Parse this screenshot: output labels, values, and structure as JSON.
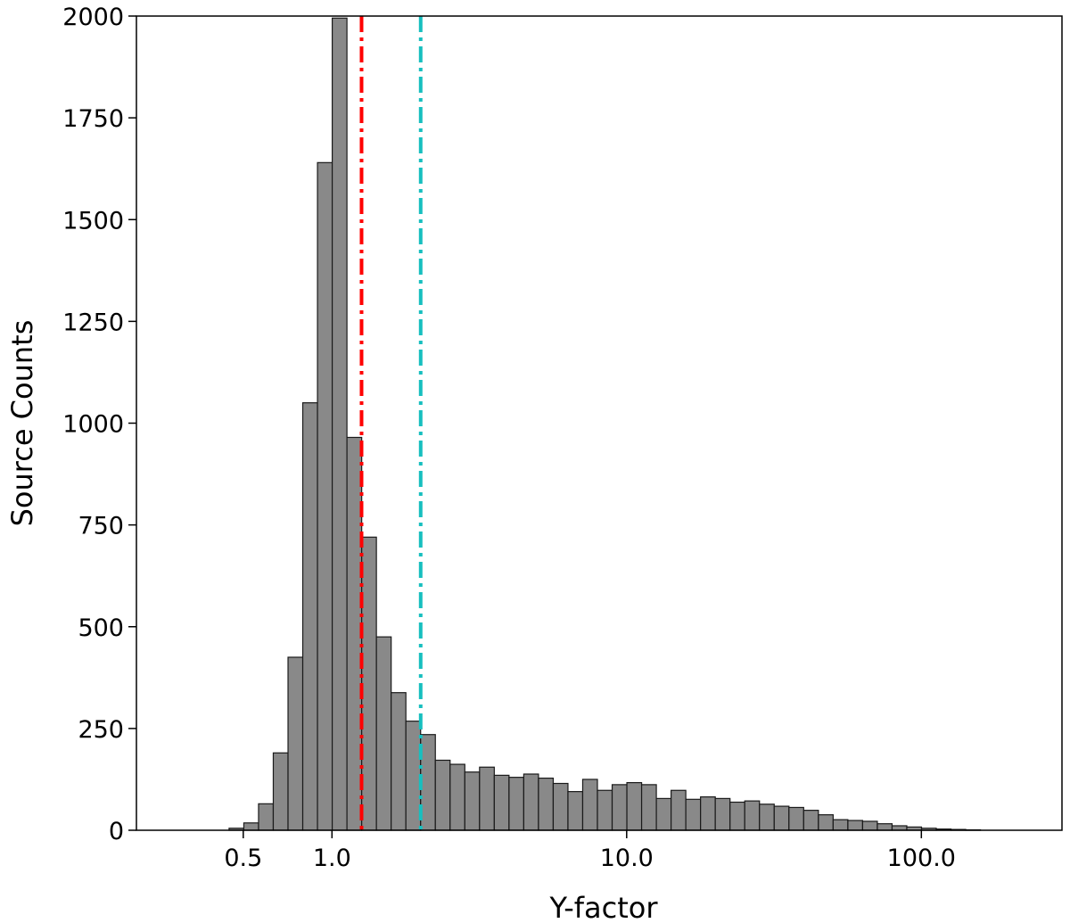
{
  "chart_data": {
    "type": "bar",
    "title": "",
    "xlabel": "Y-factor",
    "ylabel": "Source Counts",
    "xscale": "log",
    "xlim": [
      0.217,
      300
    ],
    "ylim": [
      0,
      2000
    ],
    "xticks": [
      0.5,
      1.0,
      10.0,
      100.0
    ],
    "xtick_labels": [
      "0.5",
      "1.0",
      "10.0",
      "100.0"
    ],
    "yticks": [
      0,
      250,
      500,
      750,
      1000,
      1250,
      1500,
      1750,
      2000
    ],
    "ytick_labels": [
      "0",
      "250",
      "500",
      "750",
      "1000",
      "1250",
      "1500",
      "1750",
      "2000"
    ],
    "grid": false,
    "bar_color": "#898989",
    "bar_edge_color": "#1a1a1a",
    "bin_edges": [
      0.317,
      0.3556,
      0.399,
      0.4476,
      0.5022,
      0.5635,
      0.6322,
      0.7094,
      0.7959,
      0.893,
      1.002,
      1.1242,
      1.2614,
      1.4153,
      1.588,
      1.7817,
      1.9991,
      2.243,
      2.5166,
      2.8237,
      3.1682,
      3.5547,
      3.9884,
      4.475,
      5.021,
      5.6335,
      6.3208,
      7.092,
      7.9572,
      8.928,
      10.017,
      11.2391,
      12.6102,
      14.1487,
      15.8748,
      17.8115,
      19.9845,
      22.4226,
      25.1581,
      28.2274,
      31.6711,
      35.5349,
      39.8702,
      44.7343,
      50.1918,
      56.3152,
      63.1856,
      70.8941,
      79.5431,
      89.2473,
      100.1353,
      112.3516,
      126.0583,
      141.4372,
      158.6922,
      178.0523,
      199.7744
    ],
    "counts": [
      0,
      0,
      0,
      5,
      18,
      65,
      190,
      425,
      1050,
      1640,
      1995,
      965,
      720,
      475,
      338,
      268,
      235,
      172,
      162,
      143,
      155,
      135,
      130,
      138,
      128,
      115,
      95,
      125,
      98,
      112,
      117,
      112,
      78,
      98,
      76,
      82,
      78,
      69,
      72,
      64,
      59,
      56,
      49,
      38,
      26,
      24,
      22,
      16,
      11,
      8,
      5,
      3,
      2,
      1,
      0,
      0
    ],
    "reference_lines": [
      {
        "x": 1.26,
        "color": "#ff0000",
        "style": "dash-dot"
      },
      {
        "x": 2.0,
        "color": "#17bfbf",
        "style": "dash-dot"
      }
    ]
  }
}
